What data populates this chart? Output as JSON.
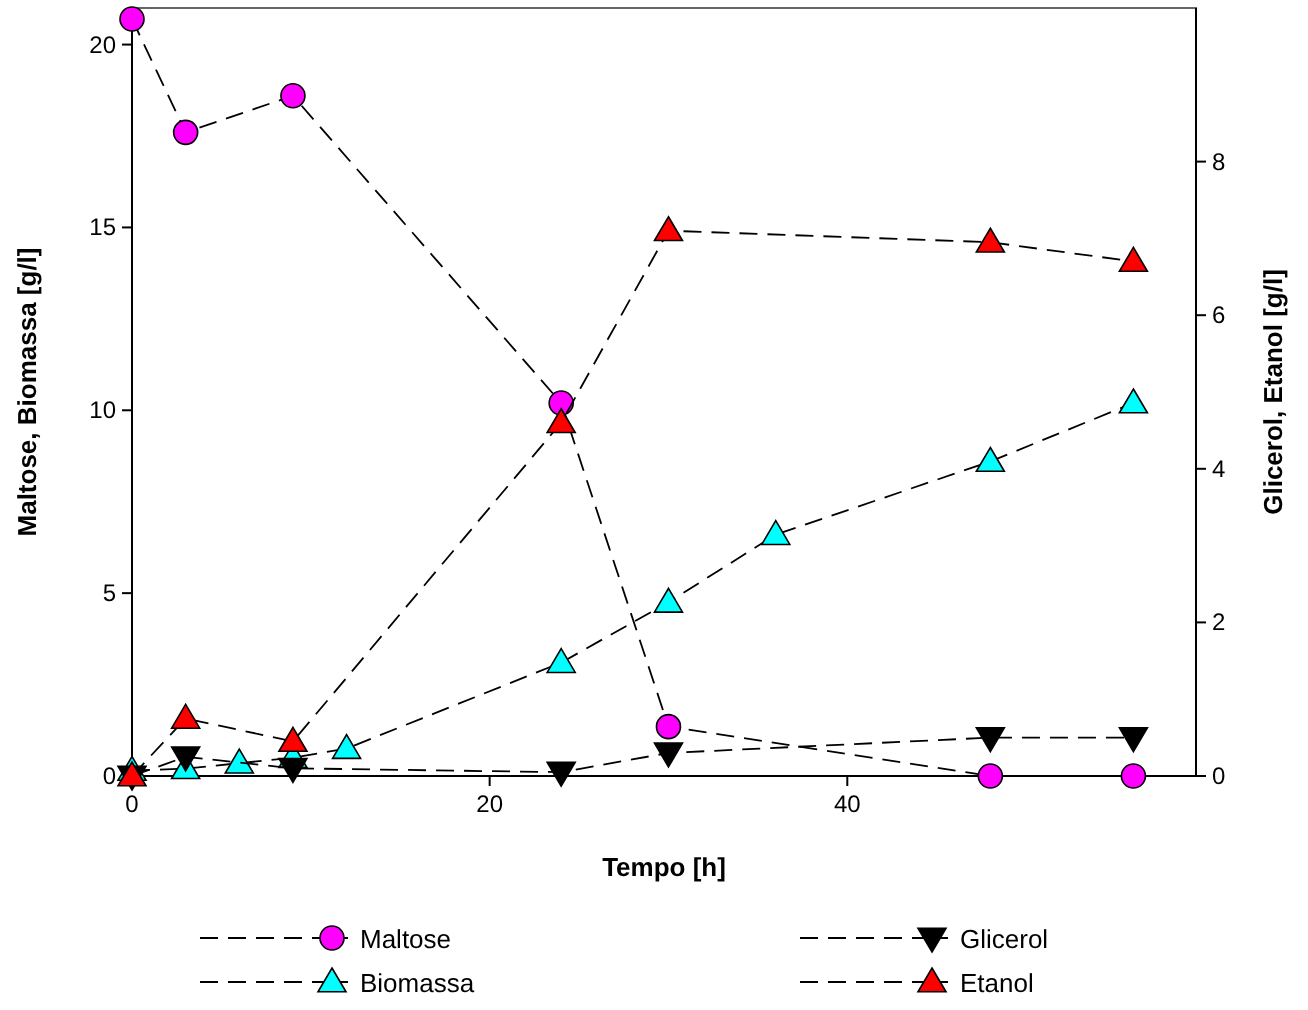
{
  "chart_data": {
    "type": "line",
    "xlabel": "Tempo [h]",
    "ylabel": "Maltose, Biomassa [g/l]",
    "y2label": "Glicerol, Etanol [g/l]",
    "xlim": [
      0,
      59.5
    ],
    "xticks": [
      0,
      20,
      40
    ],
    "ylim": [
      0,
      21
    ],
    "yticks": [
      0,
      5,
      10,
      15,
      20
    ],
    "y2lim": [
      0,
      10
    ],
    "y2ticks": [
      0,
      2,
      4,
      6,
      8
    ],
    "grid": false,
    "legend": "bottom",
    "line_style": "dashed",
    "series": [
      {
        "name": "Maltose",
        "color": "#ff00ff",
        "marker": "circle",
        "x": [
          0,
          3,
          9,
          24,
          30,
          48,
          56
        ],
        "values": [
          20.7,
          17.6,
          18.6,
          10.2,
          1.35,
          0,
          0
        ]
      },
      {
        "name": "Biomassa",
        "color": "#00ffff",
        "marker": "triangle",
        "x": [
          0,
          3,
          6,
          9,
          12,
          24,
          30,
          36,
          48,
          56
        ],
        "values": [
          0.15,
          0.2,
          0.35,
          0.5,
          0.75,
          3.1,
          4.75,
          6.6,
          8.6,
          10.2
        ]
      },
      {
        "name": "Glicerol",
        "color": "#000000",
        "marker": "triangle-down",
        "axis": "y2",
        "x": [
          0,
          3,
          9,
          24,
          30,
          48,
          56
        ],
        "values": [
          0,
          0.25,
          0.1,
          0.05,
          0.3,
          0.5,
          0.5
        ]
      },
      {
        "name": "Etanol",
        "color": "#ff0000",
        "marker": "triangle",
        "axis": "y2",
        "x": [
          0,
          3,
          9,
          24,
          30,
          48,
          56
        ],
        "values": [
          0,
          0.75,
          0.45,
          4.6,
          7.1,
          6.95,
          6.7
        ]
      }
    ]
  }
}
